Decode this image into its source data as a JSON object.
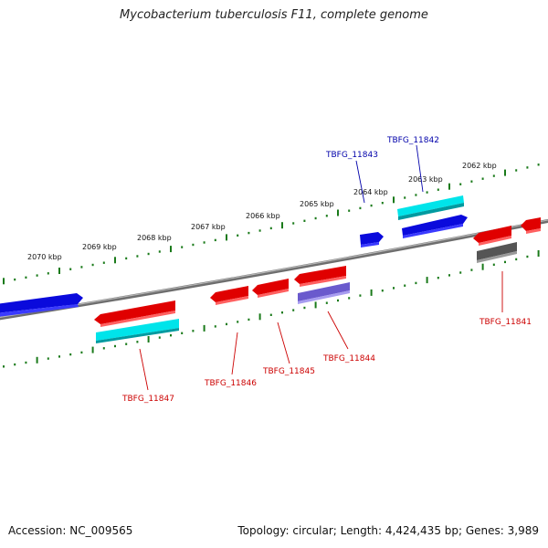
{
  "title": "Mycobacterium tuberculosis F11, complete genome",
  "footer": {
    "accession": "Accession: NC_009565",
    "topology": "Topology: circular; Length: 4,424,435 bp; Genes: 3,989"
  },
  "colors": {
    "background": "#ffffff",
    "backbone": "#808080",
    "tick_green": "#1a7a1a",
    "forward_gene": "#0a0adc",
    "reverse_gene": "#e00000",
    "cyan_feature": "#00d8e0",
    "purple_feature": "#7060d0",
    "gray_feature": "#555555",
    "label_forward": "#0000aa",
    "label_reverse": "#cc0000"
  },
  "scale_ticks": [
    {
      "text": "2070 kbp"
    },
    {
      "text": "2069 kbp"
    },
    {
      "text": "2068 kbp"
    },
    {
      "text": "2067 kbp"
    },
    {
      "text": "2066 kbp"
    },
    {
      "text": "2065 kbp"
    },
    {
      "text": "2064 kbp"
    },
    {
      "text": "2063 kbp"
    },
    {
      "text": "2062 kbp"
    }
  ],
  "gene_labels": [
    {
      "id": "TBFG_11842",
      "strand": "forward"
    },
    {
      "id": "TBFG_11843",
      "strand": "forward"
    },
    {
      "id": "TBFG_11841",
      "strand": "reverse"
    },
    {
      "id": "TBFG_11844",
      "strand": "reverse"
    },
    {
      "id": "TBFG_11845",
      "strand": "reverse"
    },
    {
      "id": "TBFG_11846",
      "strand": "reverse"
    },
    {
      "id": "TBFG_11847",
      "strand": "reverse"
    }
  ]
}
